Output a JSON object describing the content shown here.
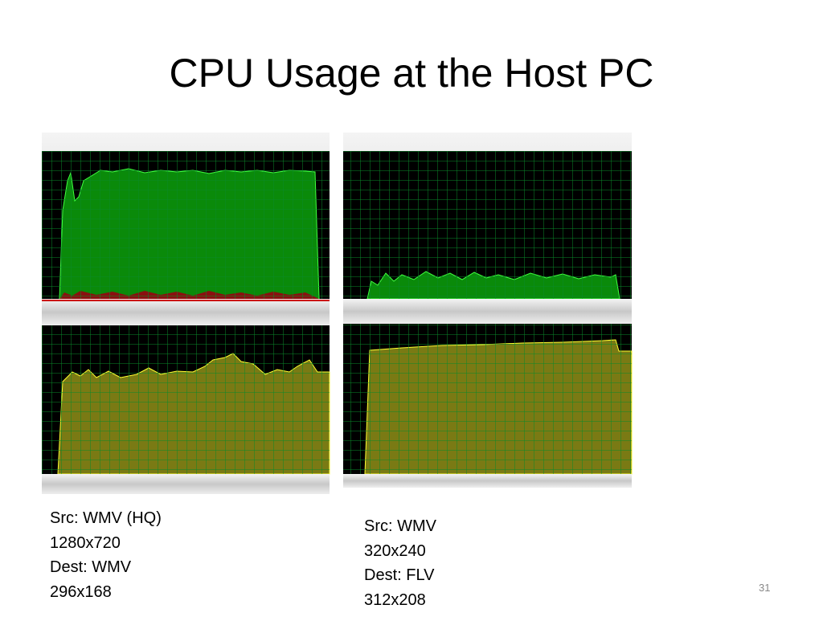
{
  "title": "CPU Usage at the Host PC",
  "captions": [
    [
      "Src: WMV (HQ)",
      "1280x720",
      "Dest: WMV",
      "296x168"
    ],
    [
      "Src: WMV",
      "320x240",
      "Dest: FLV",
      "312x208"
    ]
  ],
  "page_number": "31"
}
